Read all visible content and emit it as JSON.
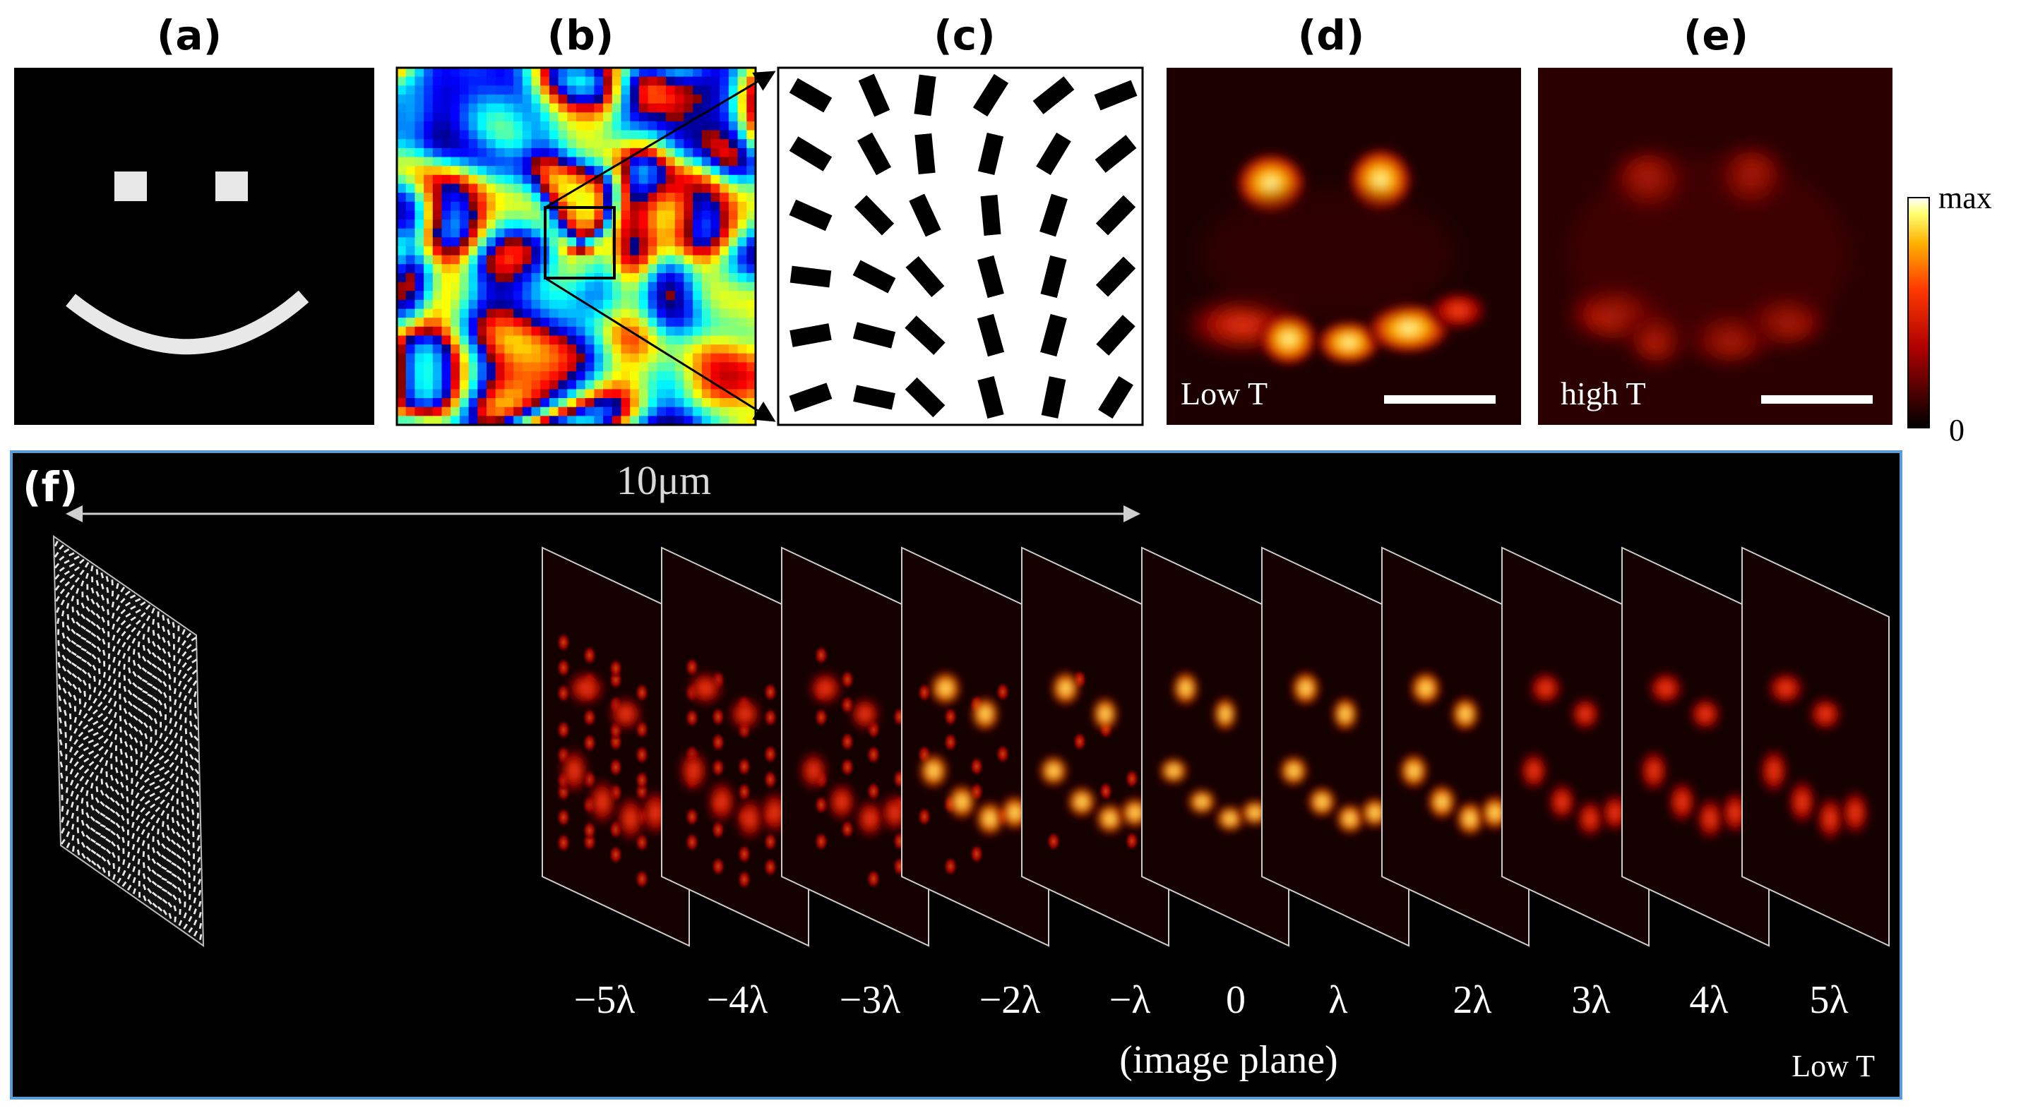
{
  "panel_labels": {
    "a": "(a)",
    "b": "(b)",
    "c": "(c)",
    "d": "(d)",
    "e": "(e)",
    "f": "(f)"
  },
  "panel_d": {
    "label": "Low T"
  },
  "panel_e": {
    "label": "high T"
  },
  "colorbar": {
    "max_label": "max",
    "min_label": "0"
  },
  "panel_f": {
    "scale_label": "10μm",
    "z_labels": [
      "−5λ",
      "−4λ",
      "−3λ",
      "−2λ",
      "−λ",
      "0",
      "λ",
      "2λ",
      "3λ",
      "4λ",
      "5λ"
    ],
    "image_plane_note": "(image plane)",
    "temperature_label": "Low T"
  },
  "colors": {
    "hot_dark": "#000000",
    "hot_red": "#b80000",
    "hot_orange": "#ff6a00",
    "hot_yellow": "#ffff60",
    "frame_blue": "#5b9bd5",
    "line_gray": "#c8c8c8"
  }
}
